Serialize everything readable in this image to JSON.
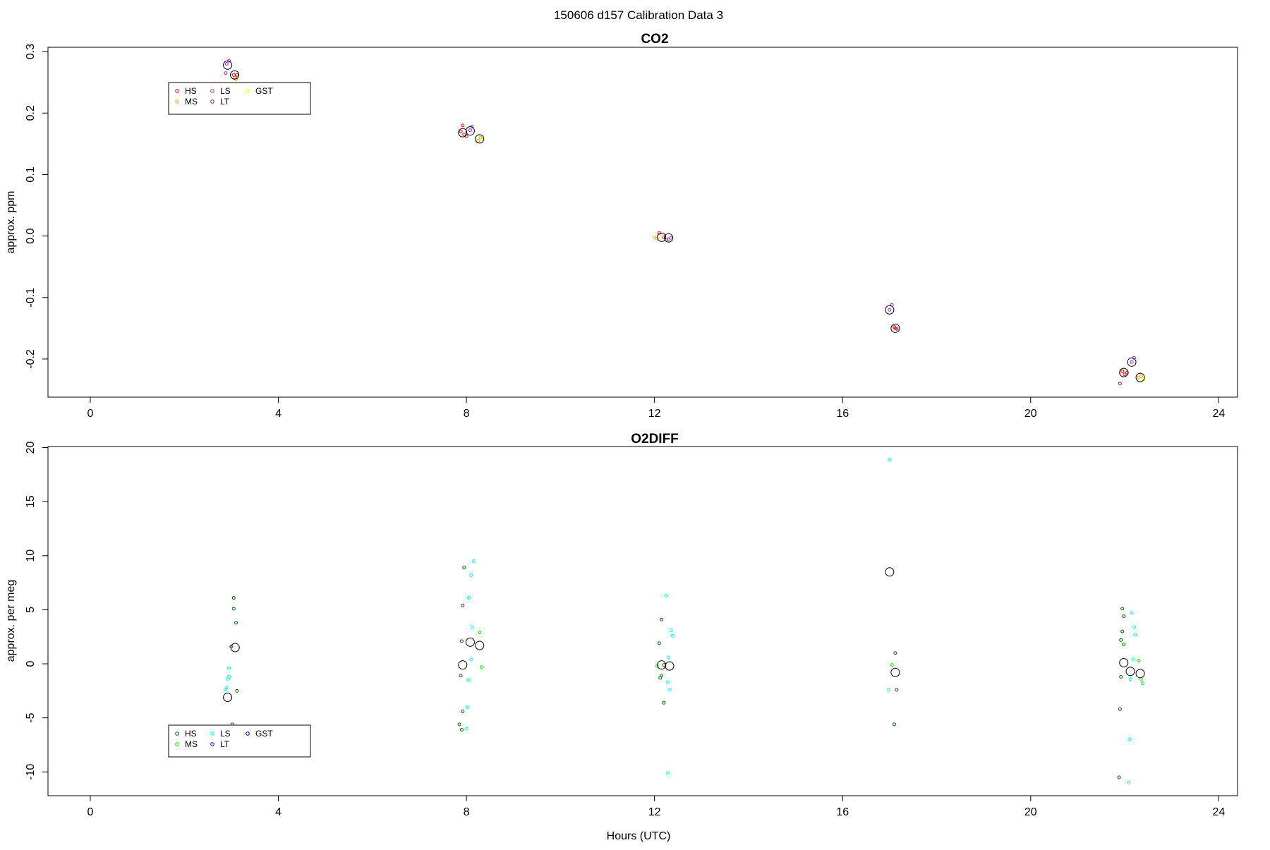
{
  "suptitle": "150606   d157   Calibration Data 3",
  "xlabel": "Hours (UTC)",
  "chart_data": [
    {
      "type": "scatter",
      "title": "CO2",
      "ylabel": "approx. ppm",
      "xlim": [
        -0.9,
        24.4
      ],
      "ylim": [
        -0.262,
        0.307
      ],
      "xticks": [
        0,
        4,
        8,
        12,
        16,
        20,
        24
      ],
      "yticks": [
        -0.2,
        -0.1,
        0.0,
        0.1,
        0.2,
        0.3
      ],
      "ytick_labels": [
        "-0.2",
        "-0.1",
        "0.0",
        "0.1",
        "0.2",
        "0.3"
      ],
      "xtick_labels": [
        "0",
        "4",
        "8",
        "12",
        "16",
        "20",
        "24"
      ],
      "legend": {
        "placement": "upper-left",
        "entries": [
          {
            "label": "HS",
            "color": "#ff0000"
          },
          {
            "label": "MS",
            "color": "#ffa500"
          },
          {
            "label": "LS",
            "color": "#a020f0"
          },
          {
            "label": "LT",
            "color": "#b22222"
          },
          {
            "label": "GST",
            "color": "#ffff00"
          }
        ]
      },
      "series": [
        {
          "name": "HS",
          "color": "#ff0000",
          "points": [
            [
              3.05,
              0.262
            ],
            [
              3.08,
              0.258
            ],
            [
              7.88,
              0.17
            ],
            [
              7.95,
              0.165
            ],
            [
              7.92,
              0.18
            ],
            [
              12.1,
              0.005
            ],
            [
              12.2,
              -0.002
            ],
            [
              17.1,
              -0.148
            ],
            [
              17.15,
              -0.151
            ],
            [
              21.95,
              -0.22
            ],
            [
              22.0,
              -0.225
            ],
            [
              21.9,
              -0.24
            ]
          ]
        },
        {
          "name": "MS",
          "color": "#ffa500",
          "points": [
            [
              3.1,
              0.255
            ],
            [
              8.3,
              0.16
            ],
            [
              8.25,
              0.155
            ],
            [
              12.0,
              -0.002
            ],
            [
              12.05,
              -0.004
            ],
            [
              22.3,
              -0.23
            ],
            [
              22.35,
              -0.228
            ]
          ]
        },
        {
          "name": "LS",
          "color": "#a020f0",
          "points": [
            [
              2.9,
              0.28
            ],
            [
              2.95,
              0.285
            ],
            [
              2.88,
              0.265
            ],
            [
              8.08,
              0.172
            ],
            [
              8.12,
              0.178
            ],
            [
              12.35,
              -0.003
            ],
            [
              12.3,
              -0.005
            ],
            [
              17.0,
              -0.12
            ],
            [
              17.05,
              -0.112
            ],
            [
              22.15,
              -0.205
            ],
            [
              22.2,
              -0.198
            ]
          ]
        },
        {
          "name": "LT",
          "color": "#b22222",
          "points": [
            [
              3.12,
              0.262
            ],
            [
              8.0,
              0.162
            ],
            [
              12.25,
              -0.006
            ],
            [
              17.12,
              -0.15
            ],
            [
              22.05,
              -0.222
            ]
          ]
        },
        {
          "name": "GST",
          "color": "#ffff00",
          "points": [
            [
              8.33,
              0.158
            ],
            [
              22.4,
              -0.233
            ]
          ]
        }
      ],
      "means": [
        [
          2.92,
          0.278
        ],
        [
          3.07,
          0.262
        ],
        [
          7.92,
          0.168
        ],
        [
          8.08,
          0.171
        ],
        [
          8.28,
          0.158
        ],
        [
          12.15,
          -0.002
        ],
        [
          12.3,
          -0.003
        ],
        [
          17.0,
          -0.12
        ],
        [
          17.12,
          -0.15
        ],
        [
          21.98,
          -0.222
        ],
        [
          22.15,
          -0.205
        ],
        [
          22.33,
          -0.23
        ]
      ]
    },
    {
      "type": "scatter",
      "title": "O2DIFF",
      "ylabel": "approx. per meg",
      "xlim": [
        -0.9,
        24.4
      ],
      "ylim": [
        -12.2,
        20.1
      ],
      "xticks": [
        0,
        4,
        8,
        12,
        16,
        20,
        24
      ],
      "yticks": [
        -10,
        -5,
        0,
        5,
        10,
        15,
        20
      ],
      "ytick_labels": [
        "-10",
        "-5",
        "0",
        "5",
        "10",
        "15",
        "20"
      ],
      "xtick_labels": [
        "0",
        "4",
        "8",
        "12",
        "16",
        "20",
        "24"
      ],
      "legend": {
        "placement": "lower-left",
        "entries": [
          {
            "label": "HS",
            "color": "#006400"
          },
          {
            "label": "MS",
            "color": "#00ff00"
          },
          {
            "label": "LS",
            "color": "#00ffff"
          },
          {
            "label": "LT",
            "color": "#0000ff"
          },
          {
            "label": "GST",
            "color": "#00008b"
          }
        ]
      },
      "series": [
        {
          "name": "HS",
          "color": "#006400",
          "points": [
            [
              3.05,
              6.1
            ],
            [
              3.05,
              5.1
            ],
            [
              3.1,
              3.8
            ],
            [
              3.0,
              1.6
            ],
            [
              3.12,
              -2.5
            ],
            [
              3.02,
              -5.6
            ],
            [
              7.95,
              8.9
            ],
            [
              7.92,
              5.4
            ],
            [
              7.9,
              2.1
            ],
            [
              7.88,
              -1.1
            ],
            [
              7.92,
              -4.4
            ],
            [
              7.85,
              -5.6
            ],
            [
              7.9,
              -6.1
            ],
            [
              12.15,
              4.1
            ],
            [
              12.1,
              1.9
            ],
            [
              12.2,
              -0.1
            ],
            [
              12.15,
              -1.1
            ],
            [
              12.12,
              -1.3
            ],
            [
              12.2,
              -3.6
            ],
            [
              17.12,
              1.0
            ],
            [
              17.15,
              -2.4
            ],
            [
              17.1,
              -5.6
            ],
            [
              21.95,
              5.1
            ],
            [
              21.98,
              4.4
            ],
            [
              21.95,
              3.0
            ],
            [
              21.92,
              2.2
            ],
            [
              21.98,
              1.8
            ],
            [
              21.92,
              -1.2
            ],
            [
              21.9,
              -4.2
            ],
            [
              21.88,
              -10.5
            ]
          ]
        },
        {
          "name": "MS",
          "color": "#00ff00",
          "points": [
            [
              8.28,
              2.9
            ],
            [
              8.32,
              -0.3
            ],
            [
              12.05,
              -0.2
            ],
            [
              17.05,
              -0.1
            ],
            [
              22.3,
              0.3
            ],
            [
              22.35,
              -1.4
            ],
            [
              22.38,
              -1.8
            ]
          ]
        },
        {
          "name": "LS",
          "color": "#00ffff",
          "points": [
            [
              2.95,
              -0.4
            ],
            [
              2.92,
              -1.4
            ],
            [
              2.95,
              -1.2
            ],
            [
              2.9,
              -2.2
            ],
            [
              2.88,
              -2.4
            ],
            [
              8.15,
              9.5
            ],
            [
              8.1,
              8.2
            ],
            [
              8.05,
              6.1
            ],
            [
              8.12,
              3.4
            ],
            [
              8.1,
              0.4
            ],
            [
              8.05,
              -1.5
            ],
            [
              8.02,
              -4.0
            ],
            [
              8.0,
              -6.0
            ],
            [
              12.25,
              6.3
            ],
            [
              12.35,
              3.1
            ],
            [
              12.38,
              2.6
            ],
            [
              12.3,
              0.6
            ],
            [
              12.28,
              -1.7
            ],
            [
              12.32,
              -2.4
            ],
            [
              12.28,
              -10.1
            ],
            [
              17.0,
              18.9
            ],
            [
              16.98,
              -2.4
            ],
            [
              22.15,
              4.7
            ],
            [
              22.2,
              3.4
            ],
            [
              22.22,
              2.7
            ],
            [
              22.18,
              0.4
            ],
            [
              22.12,
              -1.4
            ],
            [
              22.1,
              -7.0
            ],
            [
              22.08,
              -11.0
            ]
          ]
        },
        {
          "name": "LT",
          "color": "#0000ff",
          "points": []
        },
        {
          "name": "GST",
          "color": "#00008b",
          "points": []
        }
      ],
      "means": [
        [
          2.92,
          -3.1
        ],
        [
          3.08,
          1.5
        ],
        [
          7.92,
          -0.1
        ],
        [
          8.08,
          2.0
        ],
        [
          8.28,
          1.7
        ],
        [
          12.15,
          -0.1
        ],
        [
          12.32,
          -0.2
        ],
        [
          17.0,
          8.5
        ],
        [
          17.12,
          -0.8
        ],
        [
          21.98,
          0.1
        ],
        [
          22.12,
          -0.7
        ],
        [
          22.33,
          -0.9
        ]
      ]
    }
  ]
}
